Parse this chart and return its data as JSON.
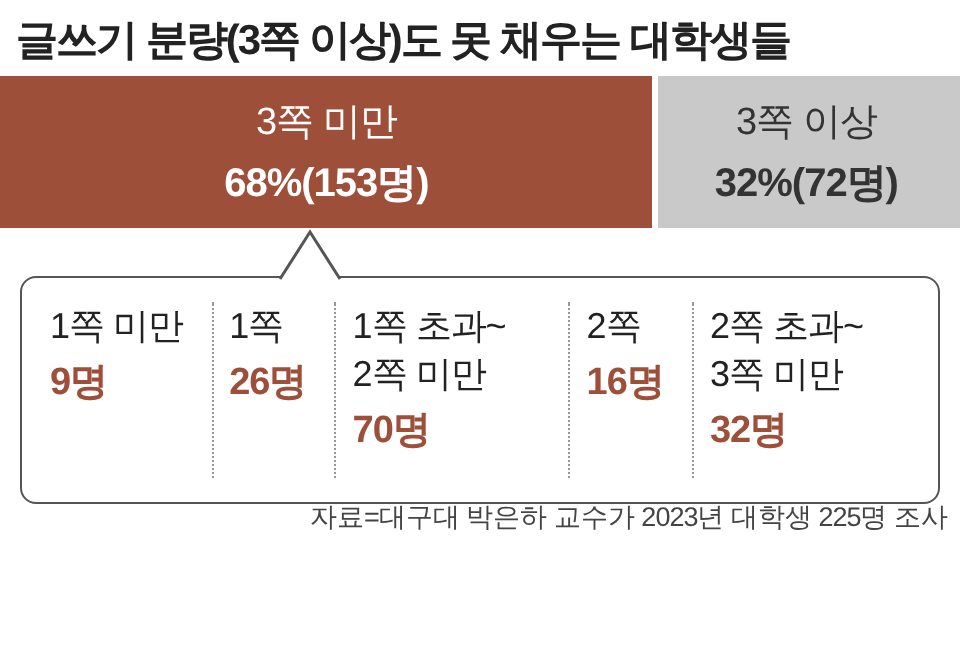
{
  "chart_data": [
    {
      "type": "bar",
      "stacked": true,
      "orientation": "horizontal",
      "title": "글쓰기 분량(3쪽 이상)도 못 채우는 대학생들",
      "categories": [
        null
      ],
      "series": [
        {
          "name": "3쪽 미만",
          "color": "#9e4f3a",
          "values": [
            68
          ],
          "value_labels": [
            "68%(153명)"
          ]
        },
        {
          "name": "3쪽 이상",
          "color": "#c9c9c9",
          "values": [
            32
          ],
          "value_labels": [
            "32%(72명)"
          ]
        }
      ]
    },
    {
      "type": "other",
      "categories": [
        "1쪽 미만",
        "1쪽",
        "1쪽 초과~ 2쪽 미만",
        "2쪽",
        "2쪽 초과~ 3쪽 미만"
      ],
      "values": [
        9,
        26,
        70,
        16,
        32
      ],
      "value_labels": [
        "9명",
        "26명",
        "70명",
        "16명",
        "32명"
      ],
      "color": "#9e4f3a",
      "annotations": [
        "자료=대구대 박은하 교수가 2023년 대학생 225명 조사"
      ]
    }
  ]
}
